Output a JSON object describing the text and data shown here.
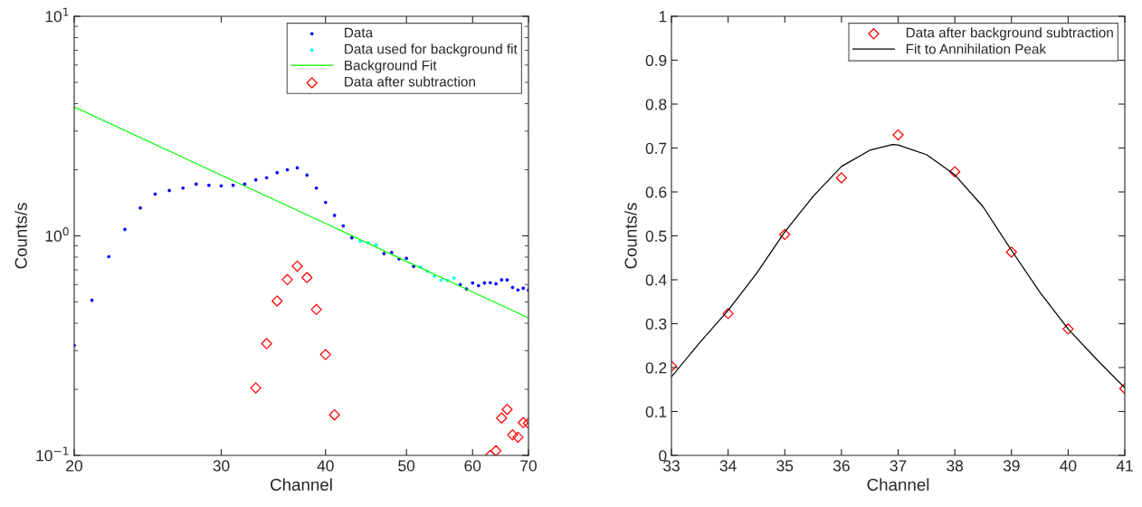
{
  "chart_data": [
    {
      "type": "scatter",
      "xlabel": "Channel",
      "ylabel": "Counts/s",
      "log": "xy",
      "xlim": [
        20,
        70
      ],
      "xticks": [
        20,
        30,
        40,
        50,
        60,
        70
      ],
      "ylim": [
        0.1,
        10
      ],
      "yticks": [
        {
          "value": 0.1,
          "label": "10$^{−1}$"
        },
        {
          "value": 1,
          "label": "10$^{0}$"
        },
        {
          "value": 10,
          "label": "10$^{1}$"
        }
      ],
      "grid": false,
      "legend": "top right",
      "series": [
        {
          "name": "Data",
          "marker": "circle",
          "color": "#0000ff",
          "x": [
            20,
            21,
            22,
            23,
            24,
            25,
            26,
            27,
            28,
            29,
            30,
            31,
            32,
            33,
            34,
            35,
            36,
            37,
            38,
            39,
            40,
            41,
            42,
            43,
            44,
            45,
            46,
            47,
            48,
            49,
            50,
            51,
            52,
            53,
            54,
            55,
            56,
            57,
            58,
            59,
            60,
            61,
            62,
            63,
            64,
            65,
            66,
            67,
            68,
            69,
            70
          ],
          "values": [
            0.317,
            0.509,
            0.804,
            1.07,
            1.34,
            1.55,
            1.61,
            1.65,
            1.72,
            1.7,
            1.69,
            1.7,
            1.72,
            1.8,
            1.84,
            1.94,
            2.0,
            2.04,
            1.89,
            1.65,
            1.42,
            1.24,
            1.11,
            0.98,
            null,
            null,
            null,
            0.83,
            0.84,
            0.785,
            0.79,
            0.726,
            null,
            null,
            null,
            null,
            null,
            null,
            0.6,
            0.573,
            0.61,
            0.593,
            0.61,
            0.612,
            0.605,
            0.63,
            0.63,
            0.582,
            0.567,
            0.577,
            0.566
          ]
        },
        {
          "name": "Data used for background fit",
          "marker": "circle",
          "color": "#00ffff",
          "x": [
            44,
            45,
            46,
            52,
            53,
            54,
            55,
            56,
            57
          ],
          "values": [
            0.945,
            0.93,
            0.91,
            0.72,
            0.69,
            0.655,
            0.628,
            0.627,
            0.643
          ]
        },
        {
          "name": "Background Fit",
          "type": "line",
          "marker": "none",
          "line_style": "solid",
          "color": "#00ff00",
          "x": [
            20,
            30,
            40,
            50,
            60,
            70
          ],
          "values": [
            3.87,
            1.89,
            1.14,
            0.766,
            0.555,
            0.423
          ]
        },
        {
          "name": "Data after subtraction",
          "marker": "diamond",
          "color": "#ff0000",
          "x": [
            33,
            34,
            35,
            36,
            37,
            38,
            39,
            40,
            41,
            63,
            64,
            65,
            66,
            67,
            68,
            69,
            70
          ],
          "values": [
            0.203,
            0.323,
            0.505,
            0.632,
            0.728,
            0.646,
            0.462,
            0.288,
            0.153,
            0.1,
            0.105,
            0.148,
            0.162,
            0.124,
            0.121,
            0.141,
            0.14
          ]
        }
      ]
    },
    {
      "type": "scatter",
      "xlabel": "Channel",
      "ylabel": "Counts/s",
      "xlim": [
        33,
        41
      ],
      "xticks": [
        33,
        34,
        35,
        36,
        37,
        38,
        39,
        40,
        41
      ],
      "ylim": [
        0,
        1
      ],
      "yticks": [
        0,
        0.1,
        0.2,
        0.3,
        0.4,
        0.5,
        0.6,
        0.7,
        0.8,
        0.9,
        1
      ],
      "grid": false,
      "legend": "top right",
      "series": [
        {
          "name": "Data after background subtraction",
          "marker": "diamond",
          "color": "#ff0000",
          "x": [
            33,
            34,
            35,
            36,
            37,
            38,
            39,
            40,
            41
          ],
          "values": [
            0.203,
            0.323,
            0.503,
            0.632,
            0.73,
            0.646,
            0.463,
            0.288,
            0.152
          ]
        },
        {
          "name": "Fit to Annihilation Peak",
          "type": "line",
          "marker": "none",
          "line_style": "solid",
          "color": "#000000",
          "x": [
            33,
            33.5,
            34,
            34.5,
            35,
            35.5,
            36,
            36.5,
            36.9,
            37,
            37.5,
            38,
            38.5,
            39,
            39.5,
            40,
            40.5,
            41
          ],
          "values": [
            0.179,
            0.257,
            0.33,
            0.414,
            0.509,
            0.59,
            0.658,
            0.695,
            0.708,
            0.707,
            0.685,
            0.639,
            0.566,
            0.467,
            0.372,
            0.288,
            0.219,
            0.154
          ]
        }
      ]
    }
  ]
}
